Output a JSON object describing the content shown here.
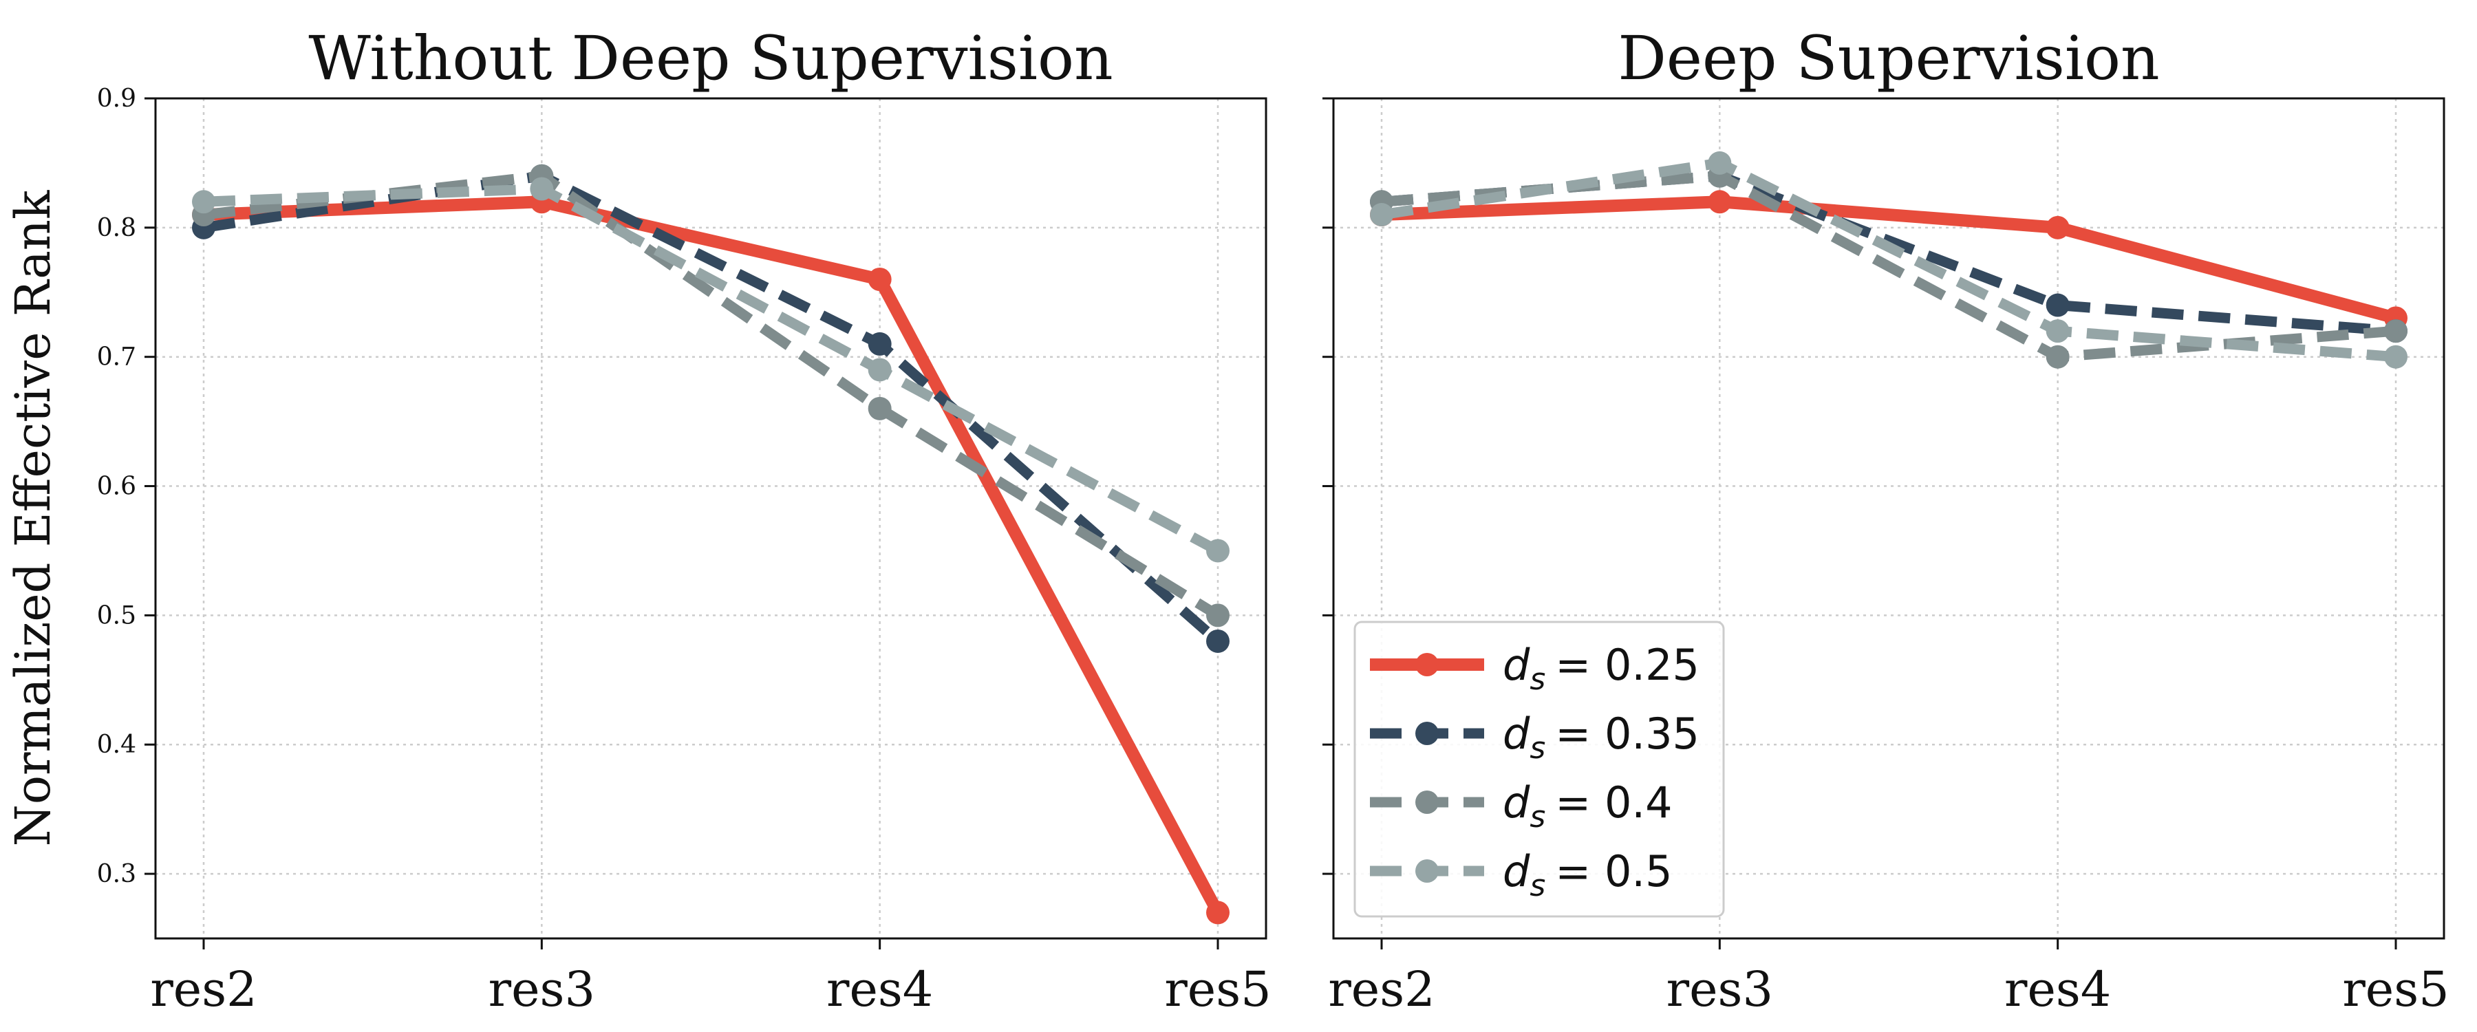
{
  "chart_data": [
    {
      "type": "line",
      "title": "Without Deep Supervision",
      "xlabel": "",
      "ylabel": "Normalized Effective Rank",
      "categories": [
        "res2",
        "res3",
        "res4",
        "res5"
      ],
      "ylim": [
        0.25,
        0.9
      ],
      "yticks": [
        "0.3",
        "0.4",
        "0.5",
        "0.6",
        "0.7",
        "0.8",
        "0.9"
      ],
      "grid": true,
      "series": [
        {
          "name": "d_s = 0.25",
          "values": [
            0.81,
            0.82,
            0.76,
            0.27
          ],
          "color": "#e74c3c",
          "style": "solid"
        },
        {
          "name": "d_s = 0.35",
          "values": [
            0.8,
            0.84,
            0.71,
            0.48
          ],
          "color": "#34495e",
          "style": "dashed"
        },
        {
          "name": "d_s = 0.4",
          "values": [
            0.81,
            0.84,
            0.66,
            0.5
          ],
          "color": "#7f8c8d",
          "style": "dashed"
        },
        {
          "name": "d_s = 0.5",
          "values": [
            0.82,
            0.83,
            0.69,
            0.55
          ],
          "color": "#95a5a6",
          "style": "dashed"
        }
      ]
    },
    {
      "type": "line",
      "title": "Deep Supervision",
      "xlabel": "",
      "ylabel": "",
      "categories": [
        "res2",
        "res3",
        "res4",
        "res5"
      ],
      "ylim": [
        0.25,
        0.9
      ],
      "grid": true,
      "legend_position": "lower-left",
      "legend": [
        {
          "symbol": "d",
          "subscript": "s",
          "value": "= 0.25"
        },
        {
          "symbol": "d",
          "subscript": "s",
          "value": "= 0.35"
        },
        {
          "symbol": "d",
          "subscript": "s",
          "value": "= 0.4"
        },
        {
          "symbol": "d",
          "subscript": "s",
          "value": "= 0.5"
        }
      ],
      "series": [
        {
          "name": "d_s = 0.25",
          "values": [
            0.81,
            0.82,
            0.8,
            0.73
          ],
          "color": "#e74c3c",
          "style": "solid"
        },
        {
          "name": "d_s = 0.35",
          "values": [
            0.82,
            0.84,
            0.74,
            0.72
          ],
          "color": "#34495e",
          "style": "dashed"
        },
        {
          "name": "d_s = 0.4",
          "values": [
            0.82,
            0.84,
            0.7,
            0.72
          ],
          "color": "#7f8c8d",
          "style": "dashed"
        },
        {
          "name": "d_s = 0.5",
          "values": [
            0.81,
            0.85,
            0.72,
            0.7
          ],
          "color": "#95a5a6",
          "style": "dashed"
        }
      ]
    }
  ]
}
